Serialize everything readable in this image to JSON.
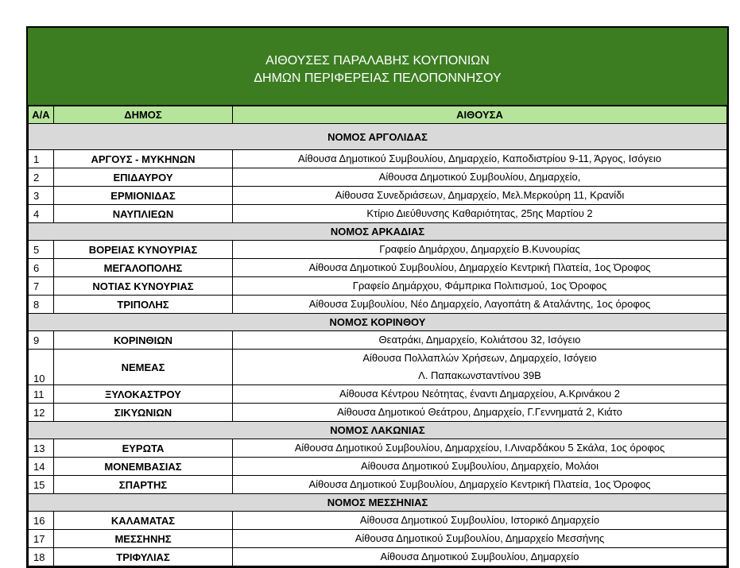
{
  "title": {
    "line1": "ΑΙΘΟΥΣΕΣ ΠΑΡΑΛΑΒΗΣ ΚΟΥΠΟΝΙΩΝ",
    "line2": "ΔΗΜΩΝ ΠΕΡΙΦΕΡΕΙΑΣ ΠΕΛΟΠΟΝΝΗΣΟΥ"
  },
  "columns": [
    "Α/Α",
    "ΔΗΜΟΣ",
    "ΑΙΘΟΥΣΑ"
  ],
  "colors": {
    "title_bg": "#3c7d22",
    "header_bg": "#b5e49a",
    "section_bg": "#d9d9d9"
  },
  "sections": [
    {
      "name": "ΝΟΜΟΣ ΑΡΓΟΛΙΔΑΣ",
      "rows": [
        {
          "aa": "1",
          "dimos": "ΑΡΓΟΥΣ - ΜΥΚΗΝΩΝ",
          "aithousa": [
            "Αίθουσα Δημοτικού Συμβουλίου, Δημαρχείο, Καποδιστρίου 9-11, Άργος, Ισόγειο"
          ]
        },
        {
          "aa": "2",
          "dimos": "ΕΠΙΔΑΥΡΟΥ",
          "aithousa": [
            "Αίθουσα Δημοτικού Συμβουλίου, Δημαρχείο,"
          ]
        },
        {
          "aa": "3",
          "dimos": "ΕΡΜΙΟΝΙΔΑΣ",
          "aithousa": [
            "Αίθουσα Συνεδριάσεων, Δημαρχείο, Μελ.Μερκούρη 11, Κρανίδι"
          ]
        },
        {
          "aa": "4",
          "dimos": "ΝΑΥΠΛΙΕΩΝ",
          "aithousa": [
            "Κτίριο Διεύθυνσης Καθαριότητας, 25ης Μαρτίου 2"
          ]
        }
      ]
    },
    {
      "name": "ΝΟΜΟΣ ΑΡΚΑΔΙΑΣ",
      "rows": [
        {
          "aa": "5",
          "dimos": "ΒΟΡΕΙΑΣ ΚΥΝΟΥΡΙΑΣ",
          "aithousa": [
            "Γραφείο Δημάρχου, Δημαρχείο Β.Κυνουρίας"
          ]
        },
        {
          "aa": "6",
          "dimos": "ΜΕΓΑΛΟΠΟΛΗΣ",
          "aithousa": [
            "Αίθουσα Δημοτικού Συμβουλίου, Δημαρχείο Κεντρική Πλατεία, 1ος Όροφος"
          ]
        },
        {
          "aa": "7",
          "dimos": "ΝΟΤΙΑΣ ΚΥΝΟΥΡΙΑΣ",
          "aithousa": [
            "Γραφείο Δημάρχου, Φάμπρικα Πολιτισμού, 1ος Όροφος"
          ]
        },
        {
          "aa": "8",
          "dimos": "ΤΡΙΠΟΛΗΣ",
          "aithousa": [
            "Αίθουσα Συμβουλίου, Νέο Δημαρχείο, Λαγοπάτη & Αταλάντης, 1ος όροφος"
          ]
        }
      ]
    },
    {
      "name": "ΝΟΜΟΣ ΚΟΡΙΝΘΟΥ",
      "rows": [
        {
          "aa": "9",
          "dimos": "ΚΟΡΙΝΘΙΩΝ",
          "aithousa": [
            "Θεατράκι, Δημαρχείο, Κολιάτσου 32, Ισόγειο"
          ]
        },
        {
          "aa": "10",
          "dimos": "ΝΕΜΕΑΣ",
          "aithousa": [
            "Αίθουσα Πολλαπλών Χρήσεων, Δημαρχείο, Ισόγειο",
            "Λ. Παπακωνσταντίνου 39Β"
          ]
        },
        {
          "aa": "11",
          "dimos": "ΞΥΛΟΚΑΣΤΡΟΥ",
          "aithousa": [
            "Αίθουσα Κέντρου Νεότητας, έναντι Δημαρχείου,  Α.Κρινάκου 2"
          ]
        },
        {
          "aa": "12",
          "dimos": "ΣΙΚΥΩΝΙΩΝ",
          "aithousa": [
            "Αίθουσα Δημοτικού Θεάτρου, Δημαρχείο, Γ.Γεννηματά 2, Κιάτο"
          ]
        }
      ]
    },
    {
      "name": "ΝΟΜΟΣ ΛΑΚΩΝΙΑΣ",
      "rows": [
        {
          "aa": "13",
          "dimos": "ΕΥΡΩΤΑ",
          "aithousa": [
            "Αίθουσα Δημοτικού Συμβουλίου, Δημαρχείου, Ι.Λιναρδάκου 5 Σκάλα, 1ος όροφος"
          ]
        },
        {
          "aa": "14",
          "dimos": "ΜΟΝΕΜΒΑΣΙΑΣ",
          "aithousa": [
            "Αίθουσα Δημοτικού Συμβουλίου, Δημαρχείο, Μολάοι"
          ]
        },
        {
          "aa": "15",
          "dimos": "ΣΠΑΡΤΗΣ",
          "aithousa": [
            "Αίθουσα Δημοτικού Συμβουλίου, Δημαρχείο Κεντρική Πλατεία, 1ος Όροφος"
          ]
        }
      ]
    },
    {
      "name": "ΝΟΜΟΣ ΜΕΣΣΗΝΙΑΣ",
      "rows": [
        {
          "aa": "16",
          "dimos": "ΚΑΛΑΜΑΤΑΣ",
          "aithousa": [
            "Αίθουσα Δημοτικού Συμβουλίου, Ιστορικό Δημαρχείο"
          ]
        },
        {
          "aa": "17",
          "dimos": "ΜΕΣΣΗΝΗΣ",
          "aithousa": [
            "Αίθουσα Δημοτικού Συμβουλίου, Δημαρχείο Μεσσήνης"
          ]
        },
        {
          "aa": "18",
          "dimos": "ΤΡΙΦΥΛΙΑΣ",
          "aithousa": [
            "Αίθουσα Δημοτικού Συμβουλίου, Δημαρχείο"
          ]
        }
      ]
    }
  ]
}
